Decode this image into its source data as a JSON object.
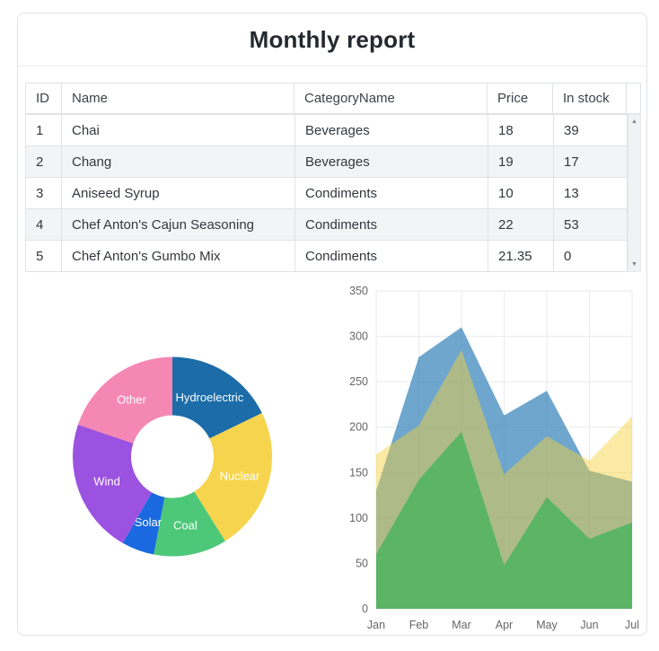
{
  "title": "Monthly report",
  "table": {
    "columns": [
      "ID",
      "Name",
      "CategoryName",
      "Price",
      "In stock"
    ],
    "rows": [
      [
        "1",
        "Chai",
        "Beverages",
        "18",
        "39"
      ],
      [
        "2",
        "Chang",
        "Beverages",
        "19",
        "17"
      ],
      [
        "3",
        "Aniseed Syrup",
        "Condiments",
        "10",
        "13"
      ],
      [
        "4",
        "Chef Anton's Cajun Seasoning",
        "Condiments",
        "22",
        "53"
      ],
      [
        "5",
        "Chef Anton's Gumbo Mix",
        "Condiments",
        "21.35",
        "0"
      ]
    ],
    "scrollbar": {
      "up_icon": "▲",
      "down_icon": "▼"
    }
  },
  "chart_data": [
    {
      "type": "pie",
      "variant": "doughnut",
      "labels": [
        "Hydroelectric",
        "Nuclear",
        "Coal",
        "Solar",
        "Wind",
        "Other"
      ],
      "values": [
        17.8,
        23.3,
        11.9,
        5.3,
        21.9,
        19.8
      ],
      "unit": "percent-share (estimated from arc angles)",
      "colors": [
        "#1b6ca8",
        "#f7d44d",
        "#4dc878",
        "#1a69e0",
        "#9c52e0",
        "#f587b4"
      ],
      "label_color": "#ffffff",
      "legend_position": "none (labels drawn on slices)"
    },
    {
      "type": "area",
      "x": [
        "Jan",
        "Feb",
        "Mar",
        "Apr",
        "May",
        "Jun",
        "Jul"
      ],
      "series": [
        {
          "name": "series-blue",
          "color": "rgba(33,118,180,0.65)",
          "values": [
            130,
            277,
            310,
            213,
            240,
            152,
            140
          ]
        },
        {
          "name": "series-yellow",
          "color": "rgba(247,211,60,0.47)",
          "values": [
            170,
            202,
            285,
            148,
            190,
            163,
            212
          ]
        },
        {
          "name": "series-green",
          "color": "rgba(60,179,88,0.72)",
          "values": [
            60,
            142,
            195,
            48,
            123,
            77,
            95
          ]
        }
      ],
      "ylim": [
        0,
        350
      ],
      "ytick_step": 50,
      "grid": true,
      "grid_color": "#e9eaec",
      "tick_label_color": "#666666",
      "legend_position": "none"
    }
  ]
}
